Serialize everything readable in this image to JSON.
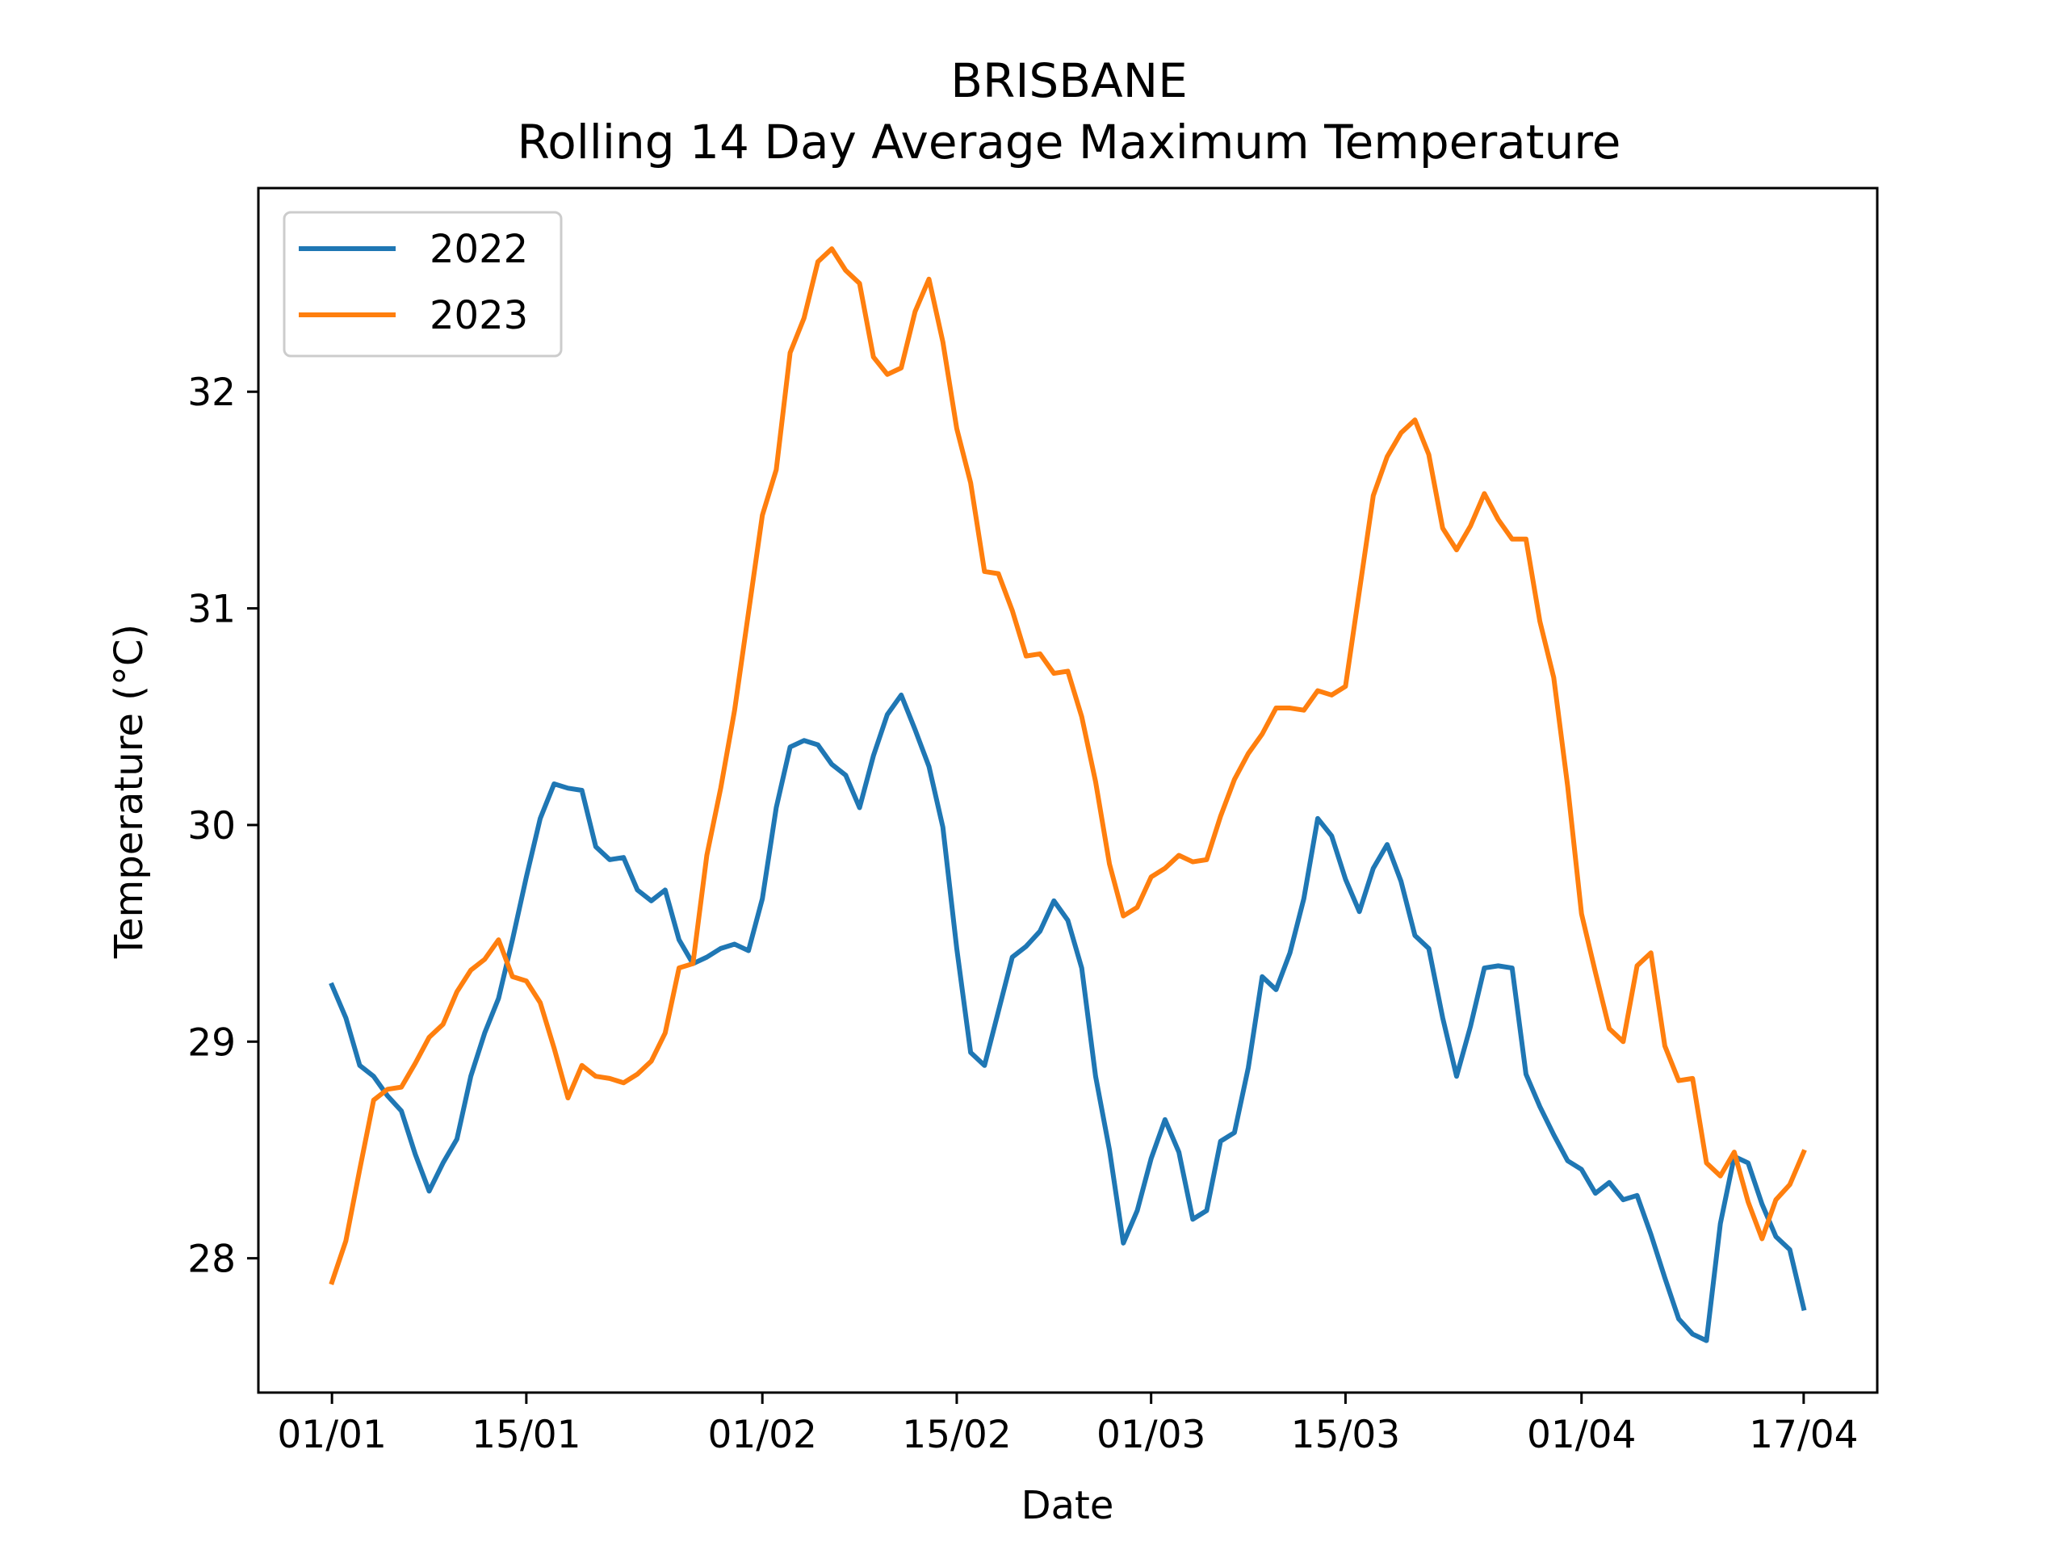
{
  "chart_data": {
    "type": "line",
    "title": "BRISBANE",
    "subtitle": "Rolling 14 Day Average Maximum Temperature",
    "xlabel": "Date",
    "ylabel": "Temperature (°C)",
    "x_start": "01/01",
    "x_end": "17/04",
    "x_ticks": [
      "01/01",
      "15/01",
      "01/02",
      "15/02",
      "01/03",
      "15/03",
      "01/04",
      "17/04"
    ],
    "x_tick_days": [
      0,
      14,
      31,
      45,
      59,
      73,
      90,
      106
    ],
    "y_ticks": [
      28,
      29,
      30,
      31,
      32
    ],
    "xlim": [
      -5.3,
      111.3
    ],
    "ylim": [
      27.38,
      32.94
    ],
    "grid": false,
    "legend": "top-left",
    "series": [
      {
        "name": "2022",
        "color": "#1f77b4",
        "values": [
          29.26,
          29.11,
          28.89,
          28.84,
          28.75,
          28.68,
          28.48,
          28.31,
          28.44,
          28.55,
          28.84,
          29.04,
          29.2,
          29.47,
          29.76,
          30.03,
          30.19,
          30.17,
          30.16,
          29.9,
          29.84,
          29.85,
          29.7,
          29.65,
          29.7,
          29.47,
          29.36,
          29.39,
          29.43,
          29.45,
          29.42,
          29.66,
          30.08,
          30.36,
          30.39,
          30.37,
          30.28,
          30.23,
          30.08,
          30.32,
          30.51,
          30.6,
          30.44,
          30.27,
          29.99,
          29.43,
          28.95,
          28.89,
          29.14,
          29.39,
          29.44,
          29.51,
          29.65,
          29.56,
          29.34,
          28.84,
          28.5,
          28.07,
          28.22,
          28.46,
          28.64,
          28.49,
          28.18,
          28.22,
          28.54,
          28.58,
          28.88,
          29.3,
          29.24,
          29.41,
          29.66,
          30.03,
          29.95,
          29.75,
          29.6,
          29.8,
          29.91,
          29.74,
          29.49,
          29.43,
          29.11,
          28.84,
          29.07,
          29.34,
          29.35,
          29.34,
          28.85,
          28.7,
          28.57,
          28.45,
          28.41,
          28.3,
          28.35,
          28.27,
          28.29,
          28.11,
          27.91,
          27.72,
          27.65,
          27.62,
          28.16,
          28.47,
          28.44,
          28.25,
          28.1,
          28.04,
          27.77
        ]
      },
      {
        "name": "2023",
        "color": "#ff7f0e",
        "values": [
          27.89,
          28.08,
          28.41,
          28.73,
          28.78,
          28.79,
          28.9,
          29.02,
          29.08,
          29.23,
          29.33,
          29.38,
          29.47,
          29.3,
          29.28,
          29.18,
          28.97,
          28.74,
          28.89,
          28.84,
          28.83,
          28.81,
          28.85,
          28.91,
          29.04,
          29.34,
          29.36,
          29.86,
          30.17,
          30.53,
          30.98,
          31.43,
          31.64,
          32.18,
          32.34,
          32.6,
          32.66,
          32.56,
          32.5,
          32.16,
          32.08,
          32.11,
          32.37,
          32.52,
          32.23,
          31.83,
          31.58,
          31.17,
          31.16,
          30.99,
          30.78,
          30.79,
          30.7,
          30.71,
          30.5,
          30.2,
          29.82,
          29.58,
          29.62,
          29.76,
          29.8,
          29.86,
          29.83,
          29.84,
          30.04,
          30.21,
          30.33,
          30.42,
          30.54,
          30.54,
          30.53,
          30.62,
          30.6,
          30.64,
          31.08,
          31.52,
          31.7,
          31.81,
          31.87,
          31.71,
          31.37,
          31.27,
          31.38,
          31.53,
          31.41,
          31.32,
          31.32,
          30.94,
          30.68,
          30.18,
          29.59,
          29.32,
          29.06,
          29.0,
          29.35,
          29.41,
          28.98,
          28.82,
          28.83,
          28.44,
          28.38,
          28.49,
          28.26,
          28.09,
          28.27,
          28.34,
          28.49
        ]
      }
    ]
  }
}
